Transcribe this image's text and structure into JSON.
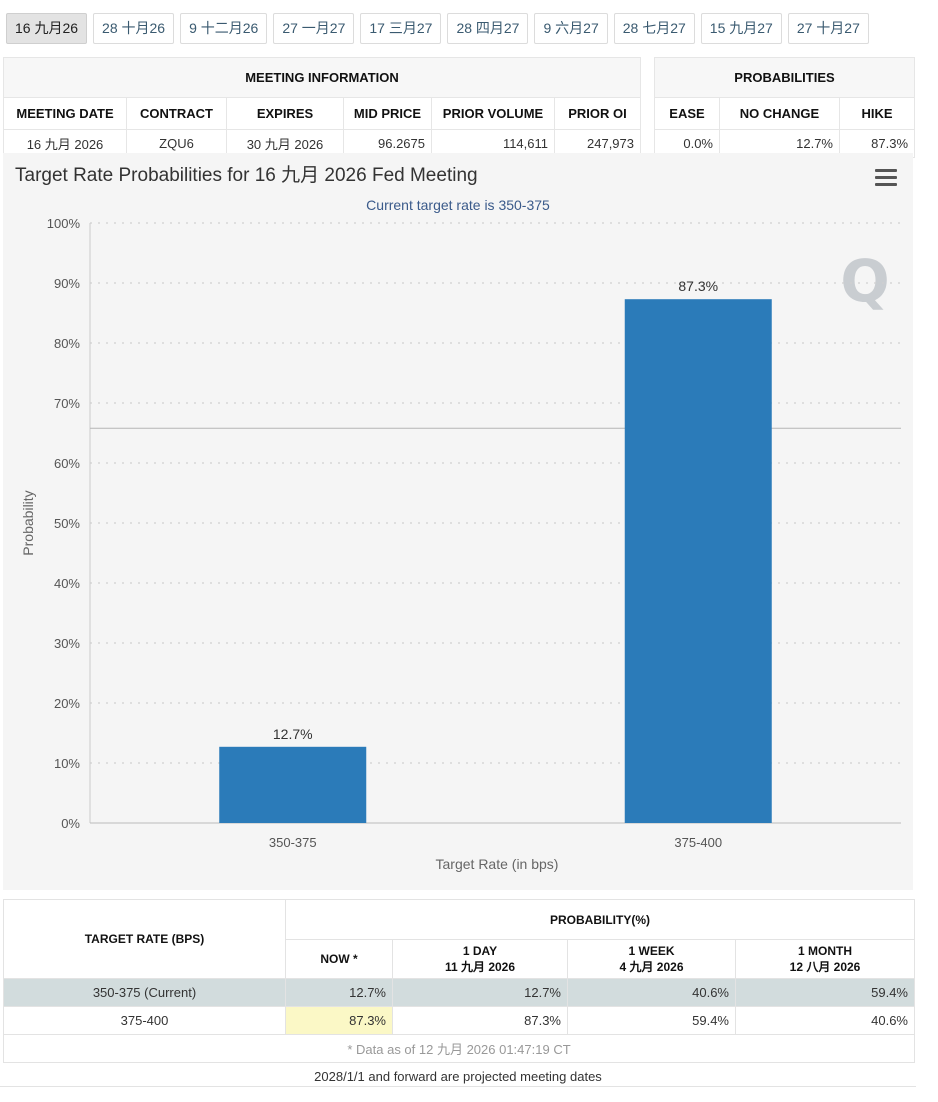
{
  "tabs": [
    "16 九月26",
    "28 十月26",
    "9 十二月26",
    "27 一月27",
    "17 三月27",
    "28 四月27",
    "9 六月27",
    "28 七月27",
    "15 九月27",
    "27 十月27"
  ],
  "meeting_info": {
    "title": "MEETING INFORMATION",
    "headers": [
      "MEETING DATE",
      "CONTRACT",
      "EXPIRES",
      "MID PRICE",
      "PRIOR VOLUME",
      "PRIOR OI"
    ],
    "values": [
      "16 九月 2026",
      "ZQU6",
      "30 九月 2026",
      "96.2675",
      "114,611",
      "247,973"
    ]
  },
  "probabilities": {
    "title": "PROBABILITIES",
    "headers": [
      "EASE",
      "NO CHANGE",
      "HIKE"
    ],
    "values": [
      "0.0%",
      "12.7%",
      "87.3%"
    ]
  },
  "chart_data": {
    "type": "bar",
    "title": "Target Rate Probabilities for 16 九月 2026 Fed Meeting",
    "subtitle": "Current target rate is 350-375",
    "xlabel": "Target Rate (in bps)",
    "ylabel": "Probability",
    "categories": [
      "350-375",
      "375-400"
    ],
    "values": [
      12.7,
      87.3
    ],
    "data_labels": [
      "12.7%",
      "87.3%"
    ],
    "ylim": [
      0,
      100
    ],
    "yticks": [
      "0%",
      "10%",
      "20%",
      "30%",
      "40%",
      "50%",
      "60%",
      "70%",
      "80%",
      "90%",
      "100%"
    ],
    "reference_line": 65.8,
    "grid": true,
    "bar_color": "#2b7bb9",
    "watermark": "Q"
  },
  "bottom_table": {
    "col_header_left": "TARGET RATE (BPS)",
    "col_header_group": "PROBABILITY(%)",
    "subheaders": [
      {
        "line1": "NOW *",
        "line2": ""
      },
      {
        "line1": "1 DAY",
        "line2": "11 九月 2026"
      },
      {
        "line1": "1 WEEK",
        "line2": "4 九月 2026"
      },
      {
        "line1": "1 MONTH",
        "line2": "12 八月 2026"
      }
    ],
    "rows": [
      {
        "rate": "350-375 (Current)",
        "values": [
          "12.7%",
          "12.7%",
          "40.6%",
          "59.4%"
        ]
      },
      {
        "rate": "375-400",
        "values": [
          "87.3%",
          "87.3%",
          "59.4%",
          "40.6%"
        ]
      }
    ],
    "note": "* Data as of 12 九月 2026 01:47:19 CT"
  },
  "footer": "2028/1/1 and forward are projected meeting dates",
  "colors": {
    "accent": "#2b7bb9",
    "current_row": "#d2dcdd",
    "highlight": "#fbf8c6",
    "subtitle": "#3a5a8a"
  }
}
